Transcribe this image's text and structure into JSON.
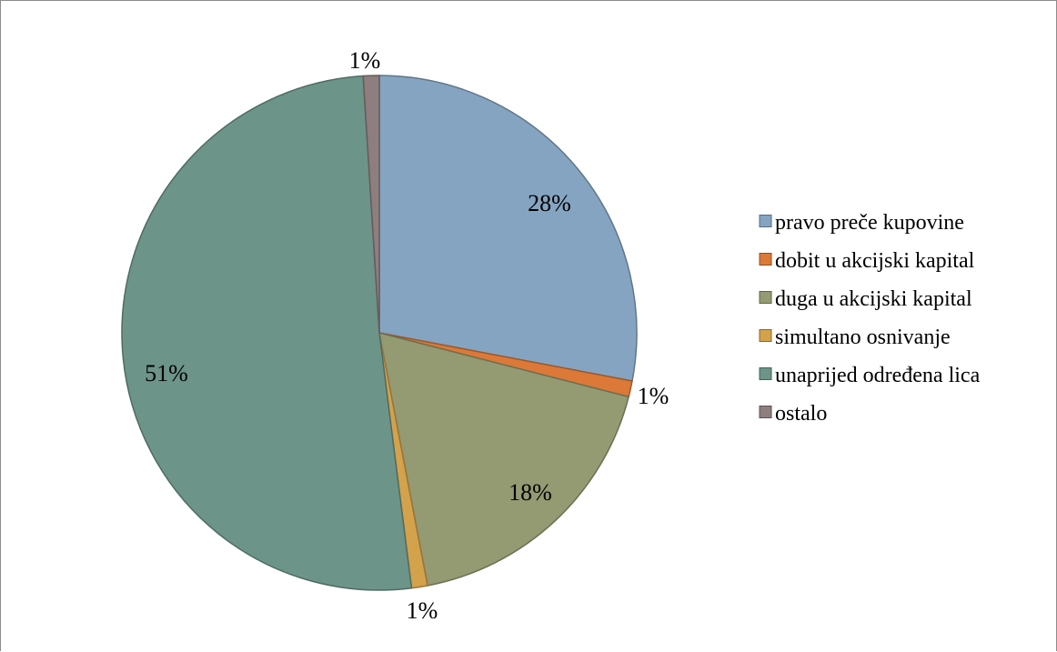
{
  "chart_data": {
    "type": "pie",
    "title": "",
    "legend_position": "right",
    "start_angle_deg": 0,
    "direction": "clockwise",
    "slices": [
      {
        "label": "pravo preče kupovine",
        "value": 28,
        "display": "28%",
        "color": "#85A4C1"
      },
      {
        "label": "dobit u akcijski kapital",
        "value": 1,
        "display": "1%",
        "color": "#DC7938"
      },
      {
        "label": "duga u akcijski kapital",
        "value": 18,
        "display": "18%",
        "color": "#949A72"
      },
      {
        "label": "simultano osnivanje",
        "value": 1,
        "display": "1%",
        "color": "#D3A24B"
      },
      {
        "label": "unaprijed određena lica",
        "value": 51,
        "display": "51%",
        "color": "#6D9489"
      },
      {
        "label": "ostalo",
        "value": 1,
        "display": "1%",
        "color": "#8E7E7E"
      }
    ]
  }
}
